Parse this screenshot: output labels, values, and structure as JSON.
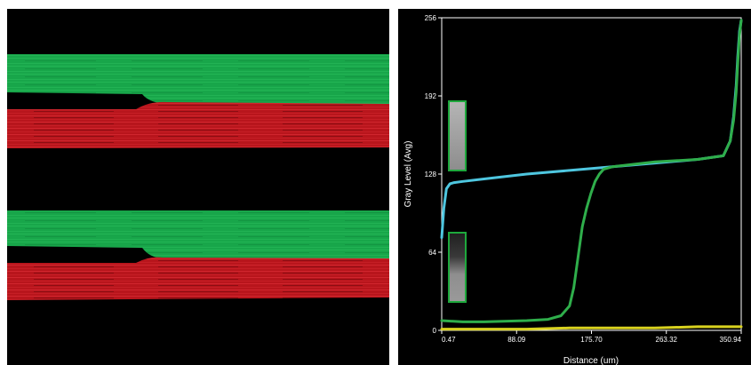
{
  "figure": {
    "colors": {
      "micrograph_background": "#000000",
      "green_channel": "#17a84a",
      "red_channel": "#c41a22",
      "plot_background": "#000000",
      "plot_frame": "#ffffff",
      "plot_text": "#ffffff",
      "inset_border": "#1ea83c"
    }
  },
  "chart_data": {
    "type": "line",
    "title": "",
    "xlabel": "Distance (um)",
    "ylabel": "Gray Level (Avg)",
    "xlim": [
      0.47,
      350.94
    ],
    "ylim": [
      0,
      256
    ],
    "x_ticks": [
      "0.47",
      "88.09",
      "175.70",
      "263.32",
      "350.94"
    ],
    "y_ticks": [
      "0",
      "64",
      "128",
      "192",
      "256"
    ],
    "grid": false,
    "legend": "none",
    "series": [
      {
        "color": "#4ec6df",
        "x": [
          0.47,
          3,
          6,
          10,
          15,
          25,
          50,
          100,
          150,
          200,
          250,
          300,
          330,
          338,
          342,
          345,
          347,
          349,
          350.94
        ],
        "y": [
          76,
          100,
          116,
          120,
          121,
          122,
          124,
          128,
          131,
          134,
          137,
          140,
          143,
          155,
          175,
          200,
          225,
          245,
          254
        ]
      },
      {
        "color": "#2fae4b",
        "x": [
          0.47,
          25,
          50,
          100,
          125,
          140,
          150,
          155,
          160,
          165,
          170,
          175,
          180,
          185,
          190,
          200,
          250,
          300,
          330,
          338,
          342,
          345,
          347,
          349,
          350.94
        ],
        "y": [
          8,
          7,
          7,
          8,
          9,
          12,
          20,
          35,
          60,
          85,
          100,
          112,
          122,
          128,
          132,
          134,
          138,
          140,
          143,
          155,
          172,
          195,
          220,
          242,
          254
        ]
      },
      {
        "color": "#d9d21f",
        "x": [
          0.47,
          50,
          100,
          150,
          200,
          250,
          300,
          350.94
        ],
        "y": [
          1,
          1,
          1,
          2,
          2,
          2,
          3,
          3
        ]
      }
    ]
  }
}
